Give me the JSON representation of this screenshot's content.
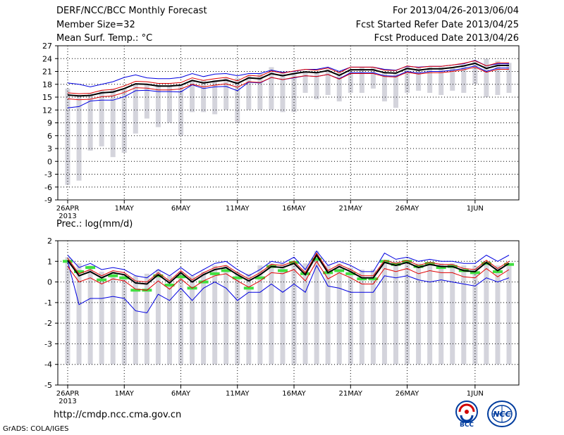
{
  "header": {
    "title": "DERF/NCC/BCC Monthly Forecast",
    "member_size": "Member Size=32",
    "variable": "Mean Surf. Temp.: °C",
    "period": "For 2013/04/26-2013/06/04",
    "refer_date": "Fcst Started Refer Date 2013/04/25",
    "produced_date": "Fcst Produced Date 2013/04/26"
  },
  "footer": {
    "url": "http://cmdp.ncc.cma.gov.cn",
    "grads": "GrADS: COLA/IGES",
    "logo_bcc": "BCC",
    "logo_ncc": "NCC"
  },
  "colors": {
    "ensemble_mean": "#000000",
    "member_spread": "#e00000",
    "envelope": "#0000e0",
    "climatology_bar": "#d4d4dc",
    "observation": "#40e040",
    "grid": "#000000"
  },
  "chart_data": [
    {
      "type": "line",
      "title": "Mean Surf. Temp.: °C",
      "xlabel": "",
      "ylabel": "°C",
      "ylim": [
        -9,
        27
      ],
      "yticks": [
        -9,
        -6,
        -3,
        0,
        3,
        6,
        9,
        12,
        15,
        18,
        21,
        24,
        27
      ],
      "days": 40,
      "x_tick_labels": [
        {
          "day": 1,
          "label": "26APR",
          "sub": "2013"
        },
        {
          "day": 6,
          "label": "1MAY"
        },
        {
          "day": 11,
          "label": "6MAY"
        },
        {
          "day": 16,
          "label": "11MAY"
        },
        {
          "day": 21,
          "label": "16MAY"
        },
        {
          "day": 26,
          "label": "21MAY"
        },
        {
          "day": 31,
          "label": "26MAY"
        },
        {
          "day": 37,
          "label": "1JUN"
        }
      ],
      "bars": {
        "name": "climatology range",
        "bottom": [
          -5.5,
          -4.5,
          2.5,
          3.5,
          1.0,
          2.0,
          6.5,
          10.0,
          8.0,
          9.0,
          6.0,
          11.5,
          11.5,
          11.0,
          12.0,
          9.0,
          12.0,
          12.0,
          12.0,
          11.5,
          11.5,
          16.0,
          14.5,
          15.5,
          14.0,
          16.0,
          16.0,
          17.0,
          14.0,
          12.5,
          16.0,
          16.5,
          16.0,
          15.5,
          16.5,
          16.0,
          18.0,
          15.0,
          15.5,
          16.0
        ],
        "top": [
          17.0,
          15.5,
          16.0,
          16.5,
          17.0,
          17.0,
          18.0,
          18.0,
          18.0,
          17.5,
          18.0,
          19.0,
          19.0,
          19.0,
          19.5,
          19.5,
          20.0,
          20.5,
          22.0,
          21.0,
          20.5,
          21.0,
          21.0,
          21.5,
          21.0,
          21.5,
          22.0,
          22.0,
          21.0,
          20.5,
          22.0,
          22.0,
          22.0,
          22.0,
          22.0,
          22.5,
          23.5,
          24.0,
          23.5,
          23.0
        ]
      },
      "series": [
        {
          "name": "ensemble mean",
          "values": [
            15.5,
            15.3,
            15.4,
            16.0,
            16.2,
            17.0,
            18.1,
            18.0,
            17.6,
            17.6,
            17.8,
            18.9,
            18.3,
            18.7,
            19.0,
            18.2,
            19.5,
            19.3,
            20.5,
            20.0,
            20.5,
            20.9,
            20.7,
            21.2,
            20.1,
            21.4,
            21.4,
            21.4,
            20.7,
            20.6,
            21.7,
            21.3,
            21.6,
            21.6,
            21.9,
            22.3,
            22.9,
            21.7,
            22.4,
            22.4
          ]
        },
        {
          "name": "spread upper",
          "values": [
            16.0,
            15.8,
            15.9,
            16.6,
            16.8,
            17.6,
            18.7,
            18.6,
            18.2,
            18.2,
            18.4,
            19.5,
            18.9,
            19.3,
            19.6,
            18.8,
            20.1,
            19.9,
            21.1,
            20.6,
            21.1,
            21.5,
            21.3,
            21.8,
            20.7,
            22.0,
            22.0,
            22.0,
            21.3,
            21.2,
            22.3,
            21.9,
            22.2,
            22.2,
            22.5,
            22.9,
            23.5,
            22.3,
            23.0,
            23.0
          ]
        },
        {
          "name": "spread lower",
          "values": [
            14.6,
            14.4,
            14.5,
            15.1,
            15.3,
            16.1,
            17.2,
            17.1,
            16.7,
            16.7,
            16.9,
            18.0,
            17.4,
            17.8,
            18.1,
            17.3,
            18.6,
            18.4,
            19.6,
            19.1,
            19.6,
            20.0,
            19.8,
            20.3,
            19.2,
            20.5,
            20.5,
            20.5,
            19.8,
            19.7,
            20.8,
            20.4,
            20.7,
            20.7,
            21.0,
            21.4,
            22.0,
            20.8,
            21.5,
            21.5
          ]
        },
        {
          "name": "max envelope",
          "values": [
            18.3,
            18.0,
            17.4,
            18.0,
            18.6,
            19.6,
            20.2,
            19.5,
            19.3,
            19.3,
            19.6,
            20.5,
            19.8,
            20.4,
            20.5,
            20.0,
            20.5,
            20.5,
            21.3,
            20.8,
            21.0,
            21.5,
            21.5,
            22.0,
            21.0,
            22.0,
            22.0,
            22.0,
            21.5,
            21.3,
            22.2,
            22.0,
            22.2,
            22.2,
            22.5,
            22.8,
            23.6,
            22.3,
            22.8,
            22.8
          ]
        },
        {
          "name": "min envelope",
          "values": [
            12.5,
            12.8,
            14.1,
            14.3,
            14.3,
            15.1,
            16.5,
            16.6,
            16.3,
            16.3,
            16.2,
            17.9,
            17.0,
            17.4,
            17.5,
            16.5,
            18.5,
            18.3,
            19.6,
            19.1,
            19.5,
            20.0,
            19.8,
            20.3,
            19.3,
            20.7,
            20.7,
            20.7,
            20.0,
            19.9,
            21.0,
            20.6,
            21.0,
            21.0,
            21.3,
            21.7,
            22.3,
            21.0,
            21.8,
            21.8
          ]
        }
      ]
    },
    {
      "type": "line",
      "title": "Prec.: log(mm/d)",
      "xlabel": "",
      "ylabel": "log(mm/d)",
      "ylim": [
        -5,
        2
      ],
      "yticks": [
        -5,
        -4,
        -3,
        -2,
        -1,
        0,
        1,
        2
      ],
      "days": 40,
      "x_tick_labels": [
        {
          "day": 1,
          "label": "26APR",
          "sub": "2013"
        },
        {
          "day": 6,
          "label": "1MAY"
        },
        {
          "day": 11,
          "label": "6MAY"
        },
        {
          "day": 16,
          "label": "11MAY"
        },
        {
          "day": 21,
          "label": "16MAY"
        },
        {
          "day": 26,
          "label": "21MAY"
        },
        {
          "day": 31,
          "label": "26MAY"
        },
        {
          "day": 37,
          "label": "1JUN"
        }
      ],
      "bars": {
        "name": "climatology range",
        "bottom": [
          -4,
          -4,
          -4,
          -4,
          -4,
          -4,
          -4,
          -4,
          -4,
          -4,
          -4,
          -4,
          -4,
          -4,
          -4,
          -4,
          -4,
          -4,
          -4,
          -4,
          -4,
          -4,
          -4,
          -4,
          -4,
          -4,
          -4,
          -4,
          -4,
          -4,
          -4,
          -4,
          -4,
          -4,
          -4,
          -4,
          -4,
          -4,
          -4,
          -4
        ],
        "top": [
          1.2,
          0.9,
          0.8,
          0.5,
          0.5,
          0.4,
          0.3,
          0.4,
          0.6,
          0.3,
          0.5,
          0.3,
          0.5,
          0.8,
          0.8,
          0.5,
          0.4,
          0.8,
          0.9,
          0.9,
          1.0,
          0.9,
          1.5,
          0.8,
          0.9,
          0.7,
          0.6,
          0.6,
          0.9,
          1.0,
          0.9,
          0.9,
          0.9,
          0.9,
          0.9,
          0.8,
          0.8,
          0.9,
          0.8,
          0.9
        ]
      },
      "observations": [
        1.0,
        0.5,
        0.7,
        0.1,
        0.3,
        0.2,
        -0.4,
        -0.4,
        0.3,
        -0.15,
        0.25,
        -0.3,
        0.0,
        0.4,
        0.55,
        0.2,
        -0.3,
        0.2,
        0.75,
        0.55,
        0.95,
        0.4,
        1.1,
        0.45,
        0.55,
        0.4,
        0.15,
        0.15,
        1.0,
        0.85,
        1.0,
        0.75,
        0.9,
        0.7,
        0.75,
        0.55,
        0.45,
        0.9,
        0.5,
        0.85
      ],
      "series": [
        {
          "name": "ensemble mean",
          "values": [
            1.05,
            0.3,
            0.5,
            0.2,
            0.45,
            0.35,
            -0.05,
            -0.1,
            0.35,
            -0.05,
            0.45,
            0.0,
            0.35,
            0.6,
            0.7,
            0.35,
            0.05,
            0.35,
            0.75,
            0.7,
            0.9,
            0.35,
            1.3,
            0.45,
            0.75,
            0.5,
            0.2,
            0.2,
            0.95,
            0.8,
            0.95,
            0.7,
            0.85,
            0.75,
            0.75,
            0.55,
            0.5,
            0.95,
            0.55,
            0.9
          ]
        },
        {
          "name": "spread upper",
          "values": [
            1.15,
            0.4,
            0.6,
            0.3,
            0.55,
            0.45,
            0.05,
            0.0,
            0.45,
            0.05,
            0.55,
            0.1,
            0.45,
            0.7,
            0.8,
            0.45,
            0.15,
            0.45,
            0.85,
            0.8,
            1.0,
            0.45,
            1.4,
            0.55,
            0.85,
            0.6,
            0.3,
            0.3,
            1.05,
            0.9,
            1.05,
            0.8,
            0.95,
            0.85,
            0.85,
            0.65,
            0.6,
            1.05,
            0.65,
            1.0
          ]
        },
        {
          "name": "spread lower",
          "values": [
            0.75,
            0.0,
            0.2,
            -0.1,
            0.15,
            0.05,
            -0.35,
            -0.4,
            0.05,
            -0.35,
            0.15,
            -0.3,
            0.05,
            0.3,
            0.4,
            0.05,
            -0.25,
            0.05,
            0.45,
            0.4,
            0.6,
            0.05,
            1.0,
            0.15,
            0.45,
            0.2,
            -0.1,
            -0.1,
            0.65,
            0.5,
            0.65,
            0.4,
            0.55,
            0.45,
            0.45,
            0.25,
            0.2,
            0.65,
            0.25,
            0.6
          ]
        },
        {
          "name": "max envelope",
          "values": [
            1.3,
            0.7,
            0.9,
            0.6,
            0.7,
            0.6,
            0.3,
            0.2,
            0.6,
            0.3,
            0.7,
            0.3,
            0.6,
            0.9,
            1.0,
            0.6,
            0.3,
            0.6,
            1.0,
            0.9,
            1.2,
            0.6,
            1.5,
            0.8,
            1.0,
            0.8,
            0.5,
            0.5,
            1.4,
            1.1,
            1.2,
            1.0,
            1.1,
            1.0,
            1.0,
            0.9,
            0.9,
            1.3,
            1.0,
            1.3
          ]
        },
        {
          "name": "min envelope",
          "values": [
            1.0,
            -1.1,
            -0.8,
            -0.8,
            -0.7,
            -0.8,
            -1.4,
            -1.5,
            -0.6,
            -0.9,
            -0.3,
            -0.9,
            -0.3,
            0.0,
            -0.3,
            -0.9,
            -0.5,
            -0.5,
            -0.1,
            -0.5,
            -0.1,
            -0.5,
            0.8,
            -0.2,
            -0.3,
            -0.5,
            -0.5,
            -0.5,
            0.3,
            0.2,
            0.3,
            0.1,
            0.0,
            0.1,
            0.0,
            -0.1,
            -0.2,
            0.2,
            0.0,
            0.2
          ]
        }
      ]
    }
  ]
}
